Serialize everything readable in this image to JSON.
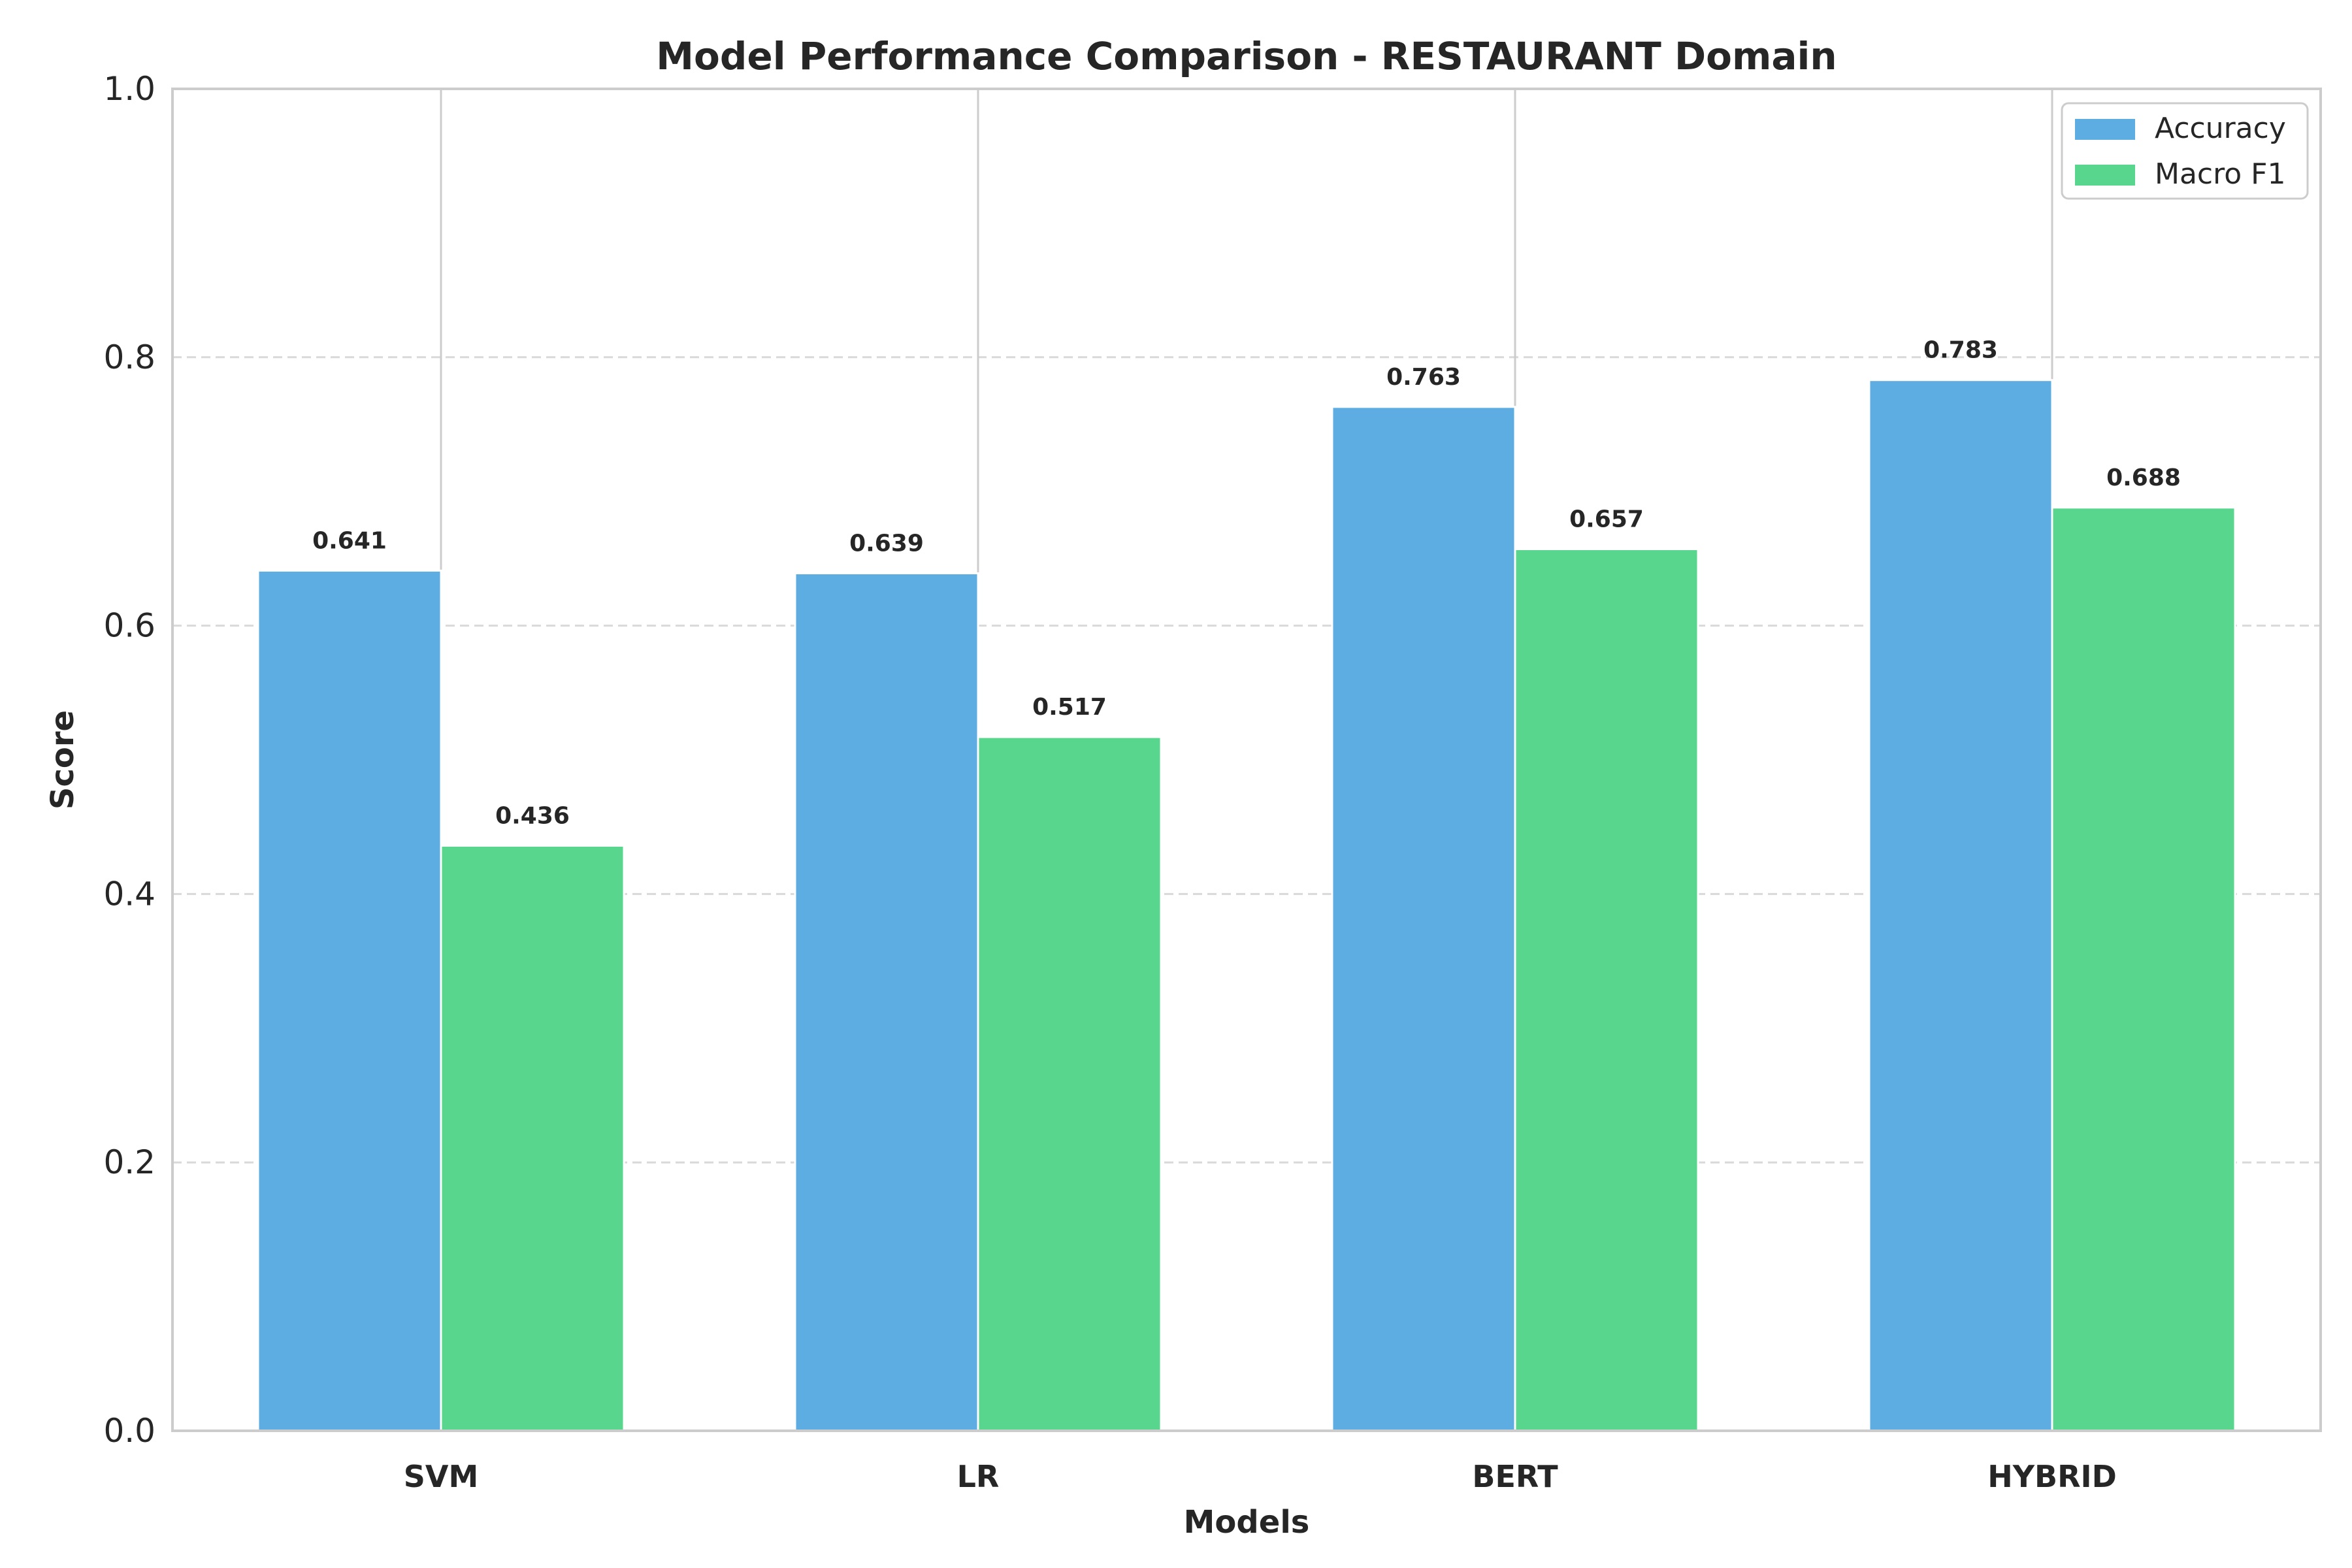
{
  "chart_data": {
    "type": "bar",
    "title": "Model Performance Comparison - RESTAURANT Domain",
    "xlabel": "Models",
    "ylabel": "Score",
    "categories": [
      "SVM",
      "LR",
      "BERT",
      "HYBRID"
    ],
    "series": [
      {
        "name": "Accuracy",
        "color": "#5DADE2",
        "values": [
          0.641,
          0.639,
          0.763,
          0.783
        ],
        "labels": [
          "0.641",
          "0.639",
          "0.763",
          "0.783"
        ]
      },
      {
        "name": "Macro F1",
        "color": "#58D68D",
        "values": [
          0.436,
          0.517,
          0.657,
          0.688
        ],
        "labels": [
          "0.436",
          "0.517",
          "0.657",
          "0.688"
        ]
      }
    ],
    "ylim": [
      0,
      1.0
    ],
    "yticks": [
      "0.0",
      "0.2",
      "0.4",
      "0.6",
      "0.8",
      "1.0"
    ],
    "grid": "y-dashed",
    "legend_position": "top-right"
  }
}
